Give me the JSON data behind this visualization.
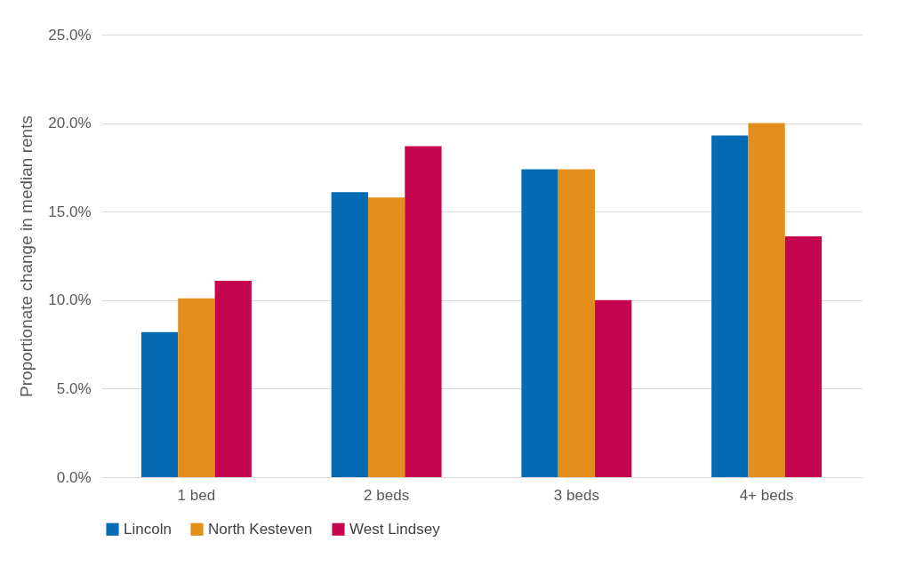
{
  "chart_data": {
    "type": "bar",
    "ylabel": "Proportionate change in median rents",
    "categories": [
      "1 bed",
      "2 beds",
      "3 beds",
      "4+ beds"
    ],
    "series": [
      {
        "name": "Lincoln",
        "color": "#056bb5",
        "values": [
          8.2,
          16.1,
          17.4,
          19.3
        ]
      },
      {
        "name": "North Kesteven",
        "color": "#e48f1b",
        "values": [
          10.1,
          15.8,
          17.4,
          20.0
        ]
      },
      {
        "name": "West Lindsey",
        "color": "#c5064f",
        "values": [
          11.1,
          18.7,
          10.0,
          13.6
        ]
      }
    ],
    "ylim": [
      0,
      25
    ],
    "yticks": [
      {
        "value": 0,
        "label": "0.0%"
      },
      {
        "value": 5,
        "label": "5.0%"
      },
      {
        "value": 10,
        "label": "10.0%"
      },
      {
        "value": 15,
        "label": "15.0%"
      },
      {
        "value": 20,
        "label": "20.0%"
      },
      {
        "value": 25,
        "label": "25.0%"
      }
    ],
    "grid": "y",
    "legend": "bottom"
  }
}
